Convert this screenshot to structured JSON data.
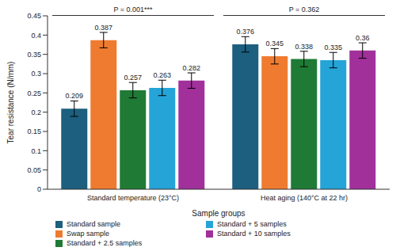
{
  "chart_data": {
    "type": "bar",
    "categories": [
      "Standard temperature (23°C)",
      "Heat aging (140°C at 22 hr)"
    ],
    "series": [
      {
        "name": "Standard sample",
        "color": "#1c5f7f",
        "values": [
          0.209,
          0.376
        ],
        "errors": [
          0.02,
          0.02
        ]
      },
      {
        "name": "Swap sample",
        "color": "#ef7b30",
        "values": [
          0.387,
          0.345
        ],
        "errors": [
          0.02,
          0.02
        ]
      },
      {
        "name": "Standard + 2.5 samples",
        "color": "#1f7a35",
        "values": [
          0.257,
          0.338
        ],
        "errors": [
          0.02,
          0.02
        ]
      },
      {
        "name": "Standard + 5 samples",
        "color": "#25a4d8",
        "values": [
          0.263,
          0.335
        ],
        "errors": [
          0.02,
          0.02
        ]
      },
      {
        "name": "Standard + 10 samples",
        "color": "#a1309b",
        "values": [
          0.282,
          0.36
        ],
        "errors": [
          0.02,
          0.02
        ]
      }
    ],
    "x_label": "Sample groups",
    "y_label": "Tear resistance (N/mm)",
    "annotations": [
      "P = 0.001***",
      "P = 0.362"
    ],
    "ylim": [
      0,
      0.45
    ],
    "yticks": [
      0,
      0.05,
      0.1,
      0.15,
      0.2,
      0.25,
      0.3,
      0.35,
      0.4,
      0.45
    ],
    "data_labels": true,
    "grid": false
  }
}
